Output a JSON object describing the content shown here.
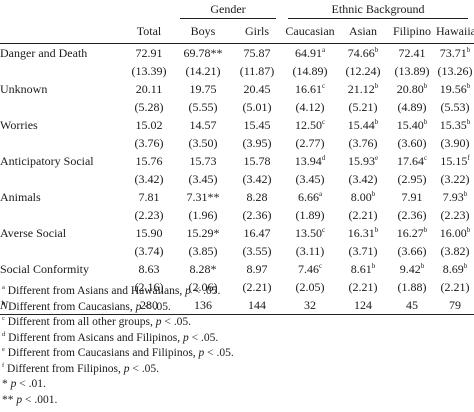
{
  "table": {
    "group_headers": {
      "gender": "Gender",
      "ethnic": "Ethnic Background"
    },
    "columns": [
      "Total",
      "Boys",
      "Girls",
      "Caucasian",
      "Asian",
      "Filipino",
      "Hawaiian"
    ],
    "rows": [
      {
        "label": "Danger and Death",
        "mean": [
          "72.91",
          "69.78**",
          "75.87",
          "64.91",
          "74.66",
          "72.41",
          "73.71"
        ],
        "mean_sup": [
          "",
          "",
          "",
          "a",
          "b",
          "",
          "b"
        ],
        "sd": [
          "(13.39)",
          "(14.21)",
          "(11.87)",
          "(14.89)",
          "(12.24)",
          "(13.89)",
          "(13.26)"
        ]
      },
      {
        "label": "Unknown",
        "mean": [
          "20.11",
          "19.75",
          "20.45",
          "16.61",
          "21.12",
          "20.80",
          "19.56"
        ],
        "mean_sup": [
          "",
          "",
          "",
          "c",
          "b",
          "b",
          "b"
        ],
        "sd": [
          "(5.28)",
          "(5.55)",
          "(5.01)",
          "(4.12)",
          "(5.21)",
          "(4.89)",
          "(5.53)"
        ]
      },
      {
        "label": "Worries",
        "mean": [
          "15.02",
          "14.57",
          "15.45",
          "12.50",
          "15.44",
          "15.40",
          "15.35"
        ],
        "mean_sup": [
          "",
          "",
          "",
          "c",
          "b",
          "b",
          "b"
        ],
        "sd": [
          "(3.76)",
          "(3.50)",
          "(3.95)",
          "(2.77)",
          "(3.76)",
          "(3.60)",
          "(3.90)"
        ]
      },
      {
        "label": "Anticipatory Social",
        "mean": [
          "15.76",
          "15.73",
          "15.78",
          "13.94",
          "15.93",
          "17.64",
          "15.15"
        ],
        "mean_sup": [
          "",
          "",
          "",
          "d",
          "e",
          "c",
          "f"
        ],
        "sd": [
          "(3.42)",
          "(3.45)",
          "(3.42)",
          "(3.45)",
          "(3.42)",
          "(2.95)",
          "(3.22)"
        ]
      },
      {
        "label": "Animals",
        "mean": [
          "7.81",
          "7.31**",
          "8.28",
          "6.66",
          "8.00",
          "7.91",
          "7.93"
        ],
        "mean_sup": [
          "",
          "",
          "",
          "a",
          "b",
          "",
          "b"
        ],
        "sd": [
          "(2.23)",
          "(1.96)",
          "(2.36)",
          "(1.89)",
          "(2.21)",
          "(2.36)",
          "(2.23)"
        ]
      },
      {
        "label": "Averse Social",
        "mean": [
          "15.90",
          "15.29*",
          "16.47",
          "13.50",
          "16.31",
          "16.27",
          "16.00"
        ],
        "mean_sup": [
          "",
          "",
          "",
          "c",
          "b",
          "b",
          "b"
        ],
        "sd": [
          "(3.74)",
          "(3.85)",
          "(3.55)",
          "(3.11)",
          "(3.71)",
          "(3.66)",
          "(3.82)"
        ]
      },
      {
        "label": "Social Conformity",
        "mean": [
          "8.63",
          "8.28*",
          "8.97",
          "7.46",
          "8.61",
          "9.42",
          "8.69"
        ],
        "mean_sup": [
          "",
          "",
          "",
          "c",
          "b",
          "b",
          "b"
        ],
        "sd": [
          "(2.16)",
          "(2.06)",
          "(2.21)",
          "(2.05)",
          "(2.21)",
          "(1.88)",
          "(2.21)"
        ]
      }
    ],
    "n_row": {
      "label": "N",
      "values": [
        "280",
        "136",
        "144",
        "32",
        "124",
        "45",
        "79"
      ]
    }
  },
  "notes": [
    {
      "mark": "a",
      "text": "Different from Asians and Hawaiians, ",
      "p": "p",
      "tail": " < .05."
    },
    {
      "mark": "b",
      "text": "Different from Caucasians, ",
      "p": "p",
      "tail": " < .05."
    },
    {
      "mark": "c",
      "text": "Different from all other groups, ",
      "p": "p",
      "tail": " < .05."
    },
    {
      "mark": "d",
      "text": "Different from Asicans and Filipinos, ",
      "p": "p",
      "tail": " < .05."
    },
    {
      "mark": "e",
      "text": "Different from Caucasians and Filipinos, ",
      "p": "p",
      "tail": " < .05."
    },
    {
      "mark": "f",
      "text": "Different from Filipinos, ",
      "p": "p",
      "tail": " < .05."
    },
    {
      "mark": "",
      "text": "* ",
      "p": "p",
      "tail": " < .01."
    },
    {
      "mark": "",
      "text": "** ",
      "p": "p",
      "tail": " < .001."
    }
  ]
}
